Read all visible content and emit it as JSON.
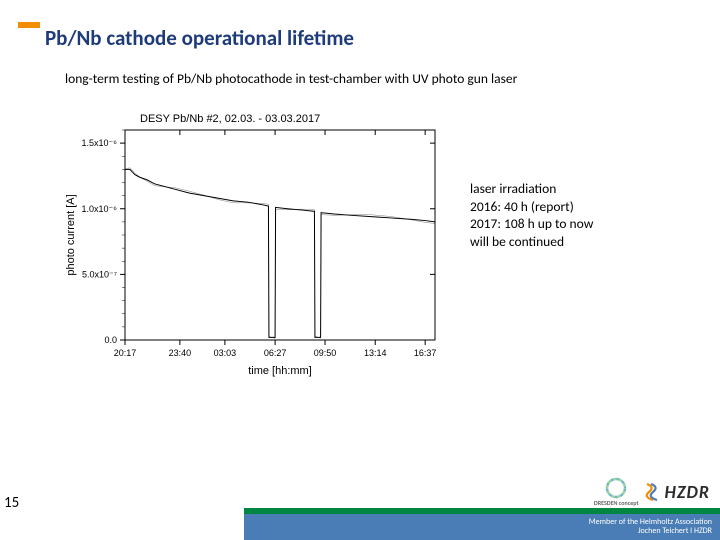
{
  "colors": {
    "orange": "#f28c00",
    "title_blue": "#1f3c7a",
    "text_black": "#000000",
    "footer_blue": "#4a7db5",
    "footer_green": "#008542",
    "footer_text": "#ffffff",
    "chart_line": "#000000",
    "chart_axis": "#000000",
    "hzdr_text": "#2c2c2c"
  },
  "title": "Pb/Nb cathode operational lifetime",
  "title_fontsize": 21,
  "subtitle": "long-term testing  of  Pb/Nb photocathode in test-chamber with UV photo gun laser",
  "subtitle_fontsize": 13.5,
  "chart": {
    "type": "line",
    "title": "DESY Pb/Nb #2, 02.03. - 03.03.2017",
    "title_fontsize": 11,
    "xlabel": "time [hh:mm]",
    "ylabel": "photo current [A]",
    "label_fontsize": 11,
    "tick_fontsize": 9,
    "xlim": [
      0,
      1260
    ],
    "ylim": [
      0,
      1.6e-06
    ],
    "xticks": [
      {
        "pos": 0,
        "label": "20:17"
      },
      {
        "pos": 223,
        "label": "23:40"
      },
      {
        "pos": 406,
        "label": "03:03"
      },
      {
        "pos": 610,
        "label": "06:27"
      },
      {
        "pos": 813,
        "label": "09:50"
      },
      {
        "pos": 1017,
        "label": "13:14"
      },
      {
        "pos": 1220,
        "label": "16:37"
      }
    ],
    "yticks": [
      {
        "pos": 0,
        "label": "0.0"
      },
      {
        "pos": 5e-07,
        "label": "5.0x10⁻⁷"
      },
      {
        "pos": 1e-06,
        "label": "1.0x10⁻⁶"
      },
      {
        "pos": 1.5e-06,
        "label": "1.5x10⁻⁶"
      }
    ],
    "line_color": "#000000",
    "line_width": 1,
    "background": "#ffffff",
    "series": [
      {
        "x": 0,
        "y": 1.3e-06
      },
      {
        "x": 20,
        "y": 1.3e-06
      },
      {
        "x": 40,
        "y": 1.26e-06
      },
      {
        "x": 60,
        "y": 1.24e-06
      },
      {
        "x": 90,
        "y": 1.22e-06
      },
      {
        "x": 120,
        "y": 1.19e-06
      },
      {
        "x": 160,
        "y": 1.17e-06
      },
      {
        "x": 200,
        "y": 1.15e-06
      },
      {
        "x": 260,
        "y": 1.12e-06
      },
      {
        "x": 320,
        "y": 1.1e-06
      },
      {
        "x": 380,
        "y": 1.08e-06
      },
      {
        "x": 440,
        "y": 1.06e-06
      },
      {
        "x": 500,
        "y": 1.05e-06
      },
      {
        "x": 560,
        "y": 1.03e-06
      },
      {
        "x": 583,
        "y": 1.02e-06
      },
      {
        "x": 585,
        "y": 2e-08
      },
      {
        "x": 610,
        "y": 2e-08
      },
      {
        "x": 612,
        "y": 1.01e-06
      },
      {
        "x": 660,
        "y": 1e-06
      },
      {
        "x": 720,
        "y": 9.9e-07
      },
      {
        "x": 770,
        "y": 9.8e-07
      },
      {
        "x": 772,
        "y": 2e-08
      },
      {
        "x": 795,
        "y": 2e-08
      },
      {
        "x": 797,
        "y": 9.7e-07
      },
      {
        "x": 850,
        "y": 9.6e-07
      },
      {
        "x": 920,
        "y": 9.5e-07
      },
      {
        "x": 1000,
        "y": 9.4e-07
      },
      {
        "x": 1080,
        "y": 9.3e-07
      },
      {
        "x": 1160,
        "y": 9.2e-07
      },
      {
        "x": 1220,
        "y": 9.1e-07
      },
      {
        "x": 1260,
        "y": 9e-07
      }
    ]
  },
  "side_text": {
    "lines": [
      "laser irradiation",
      "2016:    40 h  (report)",
      "2017:  108 h up to now",
      "will be continued"
    ],
    "fontsize": 13.5
  },
  "page_number": "15",
  "footer": {
    "line1": "Member of the Helmholtz Association",
    "line2": "Jochen Teichert  I HZDR",
    "fontsize": 8
  },
  "logos": {
    "dresden": "DRESDEN\nconcept",
    "hzdr": "HZDR"
  }
}
